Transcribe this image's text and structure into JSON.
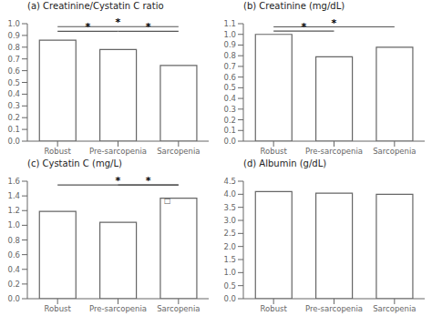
{
  "chart_data": [
    {
      "type": "bar",
      "title": "(a) Creatinine/Cystatin C ratio",
      "categories": [
        "Robust",
        "Pre-sarcopenia",
        "Sarcopenia"
      ],
      "values": [
        0.86,
        0.78,
        0.645
      ],
      "color": "#666666",
      "grid": false,
      "ylim": [
        0,
        1.0
      ],
      "yticks": [
        {
          "value": 0,
          "label": "0.0"
        },
        0.1,
        0.2,
        0.3,
        0.4,
        0.5,
        0.6,
        0.7,
        0.8,
        0.9,
        {
          "value": 1,
          "label": "1.0"
        }
      ],
      "annotations": [
        {
          "text": "*",
          "from": "Robust",
          "to": "Sarcopenia",
          "y": 0.975
        },
        {
          "text": "*",
          "from": "Robust",
          "to": "Pre-sarcopenia",
          "y": 0.935
        },
        {
          "text": "*",
          "from": "Pre-sarcopenia",
          "to": "Sarcopenia",
          "y": 0.935
        }
      ]
    },
    {
      "type": "bar",
      "title": "(b) Creatinine (mg/dL)",
      "categories": [
        "Robust",
        "Pre-sarcopenia",
        "Sarcopenia"
      ],
      "values": [
        1.0,
        0.79,
        0.88
      ],
      "color": "#666666",
      "grid": false,
      "ylim": [
        0,
        1.1
      ],
      "yticks": [
        {
          "value": 0,
          "label": "0.0"
        },
        0.1,
        0.2,
        0.3,
        0.4,
        0.5,
        0.6,
        0.7,
        0.8,
        0.9,
        {
          "value": 1,
          "label": "1.0"
        },
        1.1
      ],
      "annotations": [
        {
          "text": "*",
          "from": "Robust",
          "to": "Sarcopenia",
          "y": 1.07
        },
        {
          "text": "*",
          "from": "Robust",
          "to": "Pre-sarcopenia",
          "y": 1.03
        }
      ]
    },
    {
      "type": "bar",
      "title": "(c) Cystatin C (mg/L)",
      "categories": [
        "Robust",
        "Pre-sarcopenia",
        "Sarcopenia"
      ],
      "values": [
        1.19,
        1.04,
        1.37
      ],
      "color": "#666666",
      "grid": false,
      "ylim": [
        0,
        1.6
      ],
      "yticks": [
        {
          "value": 0,
          "label": "0.0"
        },
        0.2,
        0.4,
        0.6,
        0.8,
        {
          "value": 1,
          "label": "1.0"
        },
        1.2,
        1.4,
        1.6
      ],
      "annotations": [
        {
          "text": "*",
          "from": "Robust",
          "to": "Sarcopenia",
          "y": 1.55
        },
        {
          "text": "*",
          "from": "Pre-sarcopenia",
          "to": "Sarcopenia",
          "y": 1.55
        },
        {
          "text": "□",
          "at": "Sarcopenia",
          "y": 1.285
        }
      ]
    },
    {
      "type": "bar",
      "title": "(d) Albumin (g/dL)",
      "categories": [
        "Robust",
        "Pre-sarcopenia",
        "Sarcopenia"
      ],
      "values": [
        4.1,
        4.04,
        4.0
      ],
      "color": "#666666",
      "grid": false,
      "ylim": [
        0,
        4.5
      ],
      "yticks": [
        {
          "value": 0,
          "label": "0.0"
        },
        0.5,
        {
          "value": 1,
          "label": "1.0"
        },
        1.5,
        {
          "value": 2,
          "label": "2.0"
        },
        2.5,
        {
          "value": 3,
          "label": "3.0"
        },
        3.5,
        {
          "value": 4,
          "label": "4.0"
        },
        4.5
      ]
    }
  ]
}
